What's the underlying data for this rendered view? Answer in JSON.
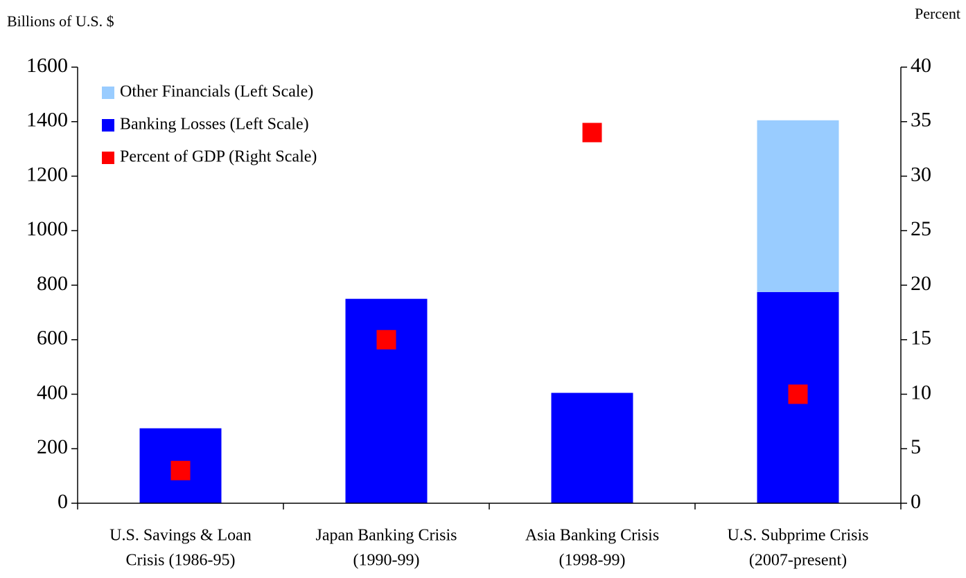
{
  "chart_data": {
    "type": "bar",
    "y_axis_label": "Billions of U.S. $",
    "y2_axis_label": "Percent",
    "categories": [
      [
        "U.S. Savings & Loan",
        "Crisis (1986-95)"
      ],
      [
        "Japan Banking Crisis",
        "(1990-99)"
      ],
      [
        "Asia Banking Crisis",
        "(1998-99)"
      ],
      [
        "U.S. Subprime Crisis",
        "(2007-present)"
      ]
    ],
    "series": [
      {
        "name": "Other Financials (Left Scale)",
        "color": "#99ccff",
        "values": [
          null,
          null,
          null,
          630
        ]
      },
      {
        "name": "Banking Losses (Left Scale)",
        "color": "#0000ff",
        "values": [
          275,
          750,
          405,
          775
        ]
      },
      {
        "name": "Percent of GDP (Right Scale)",
        "color": "#ff0000",
        "values": [
          3,
          15,
          34,
          10
        ],
        "axis": "y2",
        "marker": "square"
      }
    ],
    "stacked": true,
    "ylim": [
      0,
      1600
    ],
    "yticks": [
      0,
      200,
      400,
      600,
      800,
      1000,
      1200,
      1400,
      1600
    ],
    "y2lim": [
      0,
      40
    ],
    "y2ticks": [
      0,
      5,
      10,
      15,
      20,
      25,
      30,
      35,
      40
    ],
    "legend": "top-left",
    "grid": false
  }
}
